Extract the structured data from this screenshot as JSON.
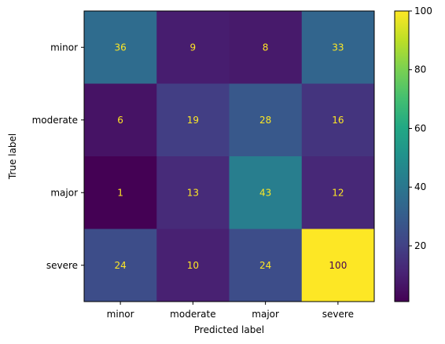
{
  "chart_data": {
    "type": "heatmap",
    "title": "",
    "xlabel": "Predicted label",
    "ylabel": "True label",
    "x_categories": [
      "minor",
      "moderate",
      "major",
      "severe"
    ],
    "y_categories": [
      "minor",
      "moderate",
      "major",
      "severe"
    ],
    "values": [
      [
        36,
        9,
        8,
        33
      ],
      [
        6,
        19,
        28,
        16
      ],
      [
        1,
        13,
        43,
        12
      ],
      [
        24,
        10,
        24,
        100
      ]
    ],
    "colormap": "viridis",
    "color_range": [
      1,
      100
    ],
    "colorbar_ticks": [
      20,
      40,
      60,
      80,
      100
    ],
    "colorbar_tick_labels": [
      "20",
      "40",
      "60",
      "80",
      "100"
    ],
    "text_color_light": "#fde725",
    "text_color_dark": "#440154"
  }
}
